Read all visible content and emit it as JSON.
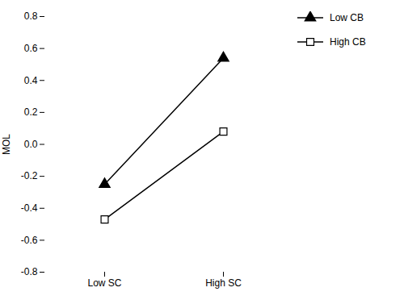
{
  "chart_data": {
    "type": "line",
    "categories": [
      "Low SC",
      "High SC"
    ],
    "series": [
      {
        "name": "Low CB",
        "color": "#000000",
        "marker": "triangle",
        "values": [
          -0.25,
          0.54
        ]
      },
      {
        "name": "High CB",
        "color": "#000000",
        "marker": "open-square",
        "values": [
          -0.47,
          0.08
        ]
      }
    ],
    "ylabel": "MOL",
    "ylim": [
      -0.8,
      0.8
    ],
    "yticks": [
      -0.8,
      -0.6,
      -0.4,
      -0.2,
      {
        "value": 0,
        "label": "0.0"
      },
      0.2,
      0.4,
      0.6,
      0.8
    ],
    "grid": false,
    "legend": "right"
  }
}
